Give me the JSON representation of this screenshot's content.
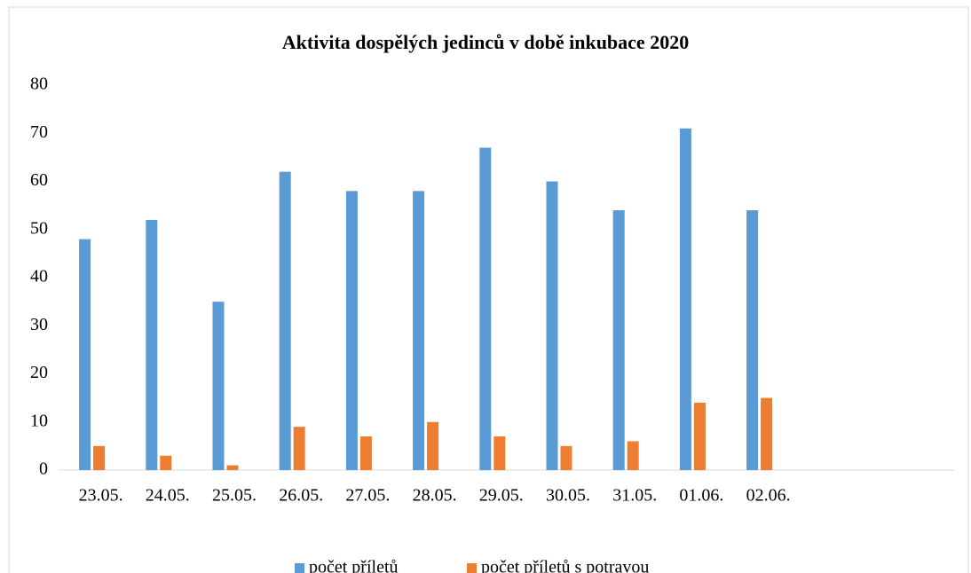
{
  "chart_data": {
    "type": "bar",
    "title": "Aktivita dospělých jedinců v době inkubace 2020",
    "categories": [
      "23.05.",
      "24.05.",
      "25.05.",
      "26.05.",
      "27.05.",
      "28.05.",
      "29.05.",
      "30.05.",
      "31.05.",
      "01.06.",
      "02.06."
    ],
    "series": [
      {
        "name": "počet příletů",
        "color": "#5b9bd5",
        "values": [
          48,
          52,
          35,
          62,
          58,
          58,
          67,
          60,
          54,
          71,
          54
        ]
      },
      {
        "name": "počet příletů s potravou",
        "color": "#ed7d31",
        "values": [
          5,
          3,
          1,
          9,
          7,
          10,
          7,
          5,
          6,
          14,
          15
        ]
      }
    ],
    "ylim": [
      0,
      80
    ],
    "yticks": [
      0,
      10,
      20,
      30,
      40,
      50,
      60,
      70,
      80
    ],
    "grid": false,
    "legend": "bottom"
  }
}
